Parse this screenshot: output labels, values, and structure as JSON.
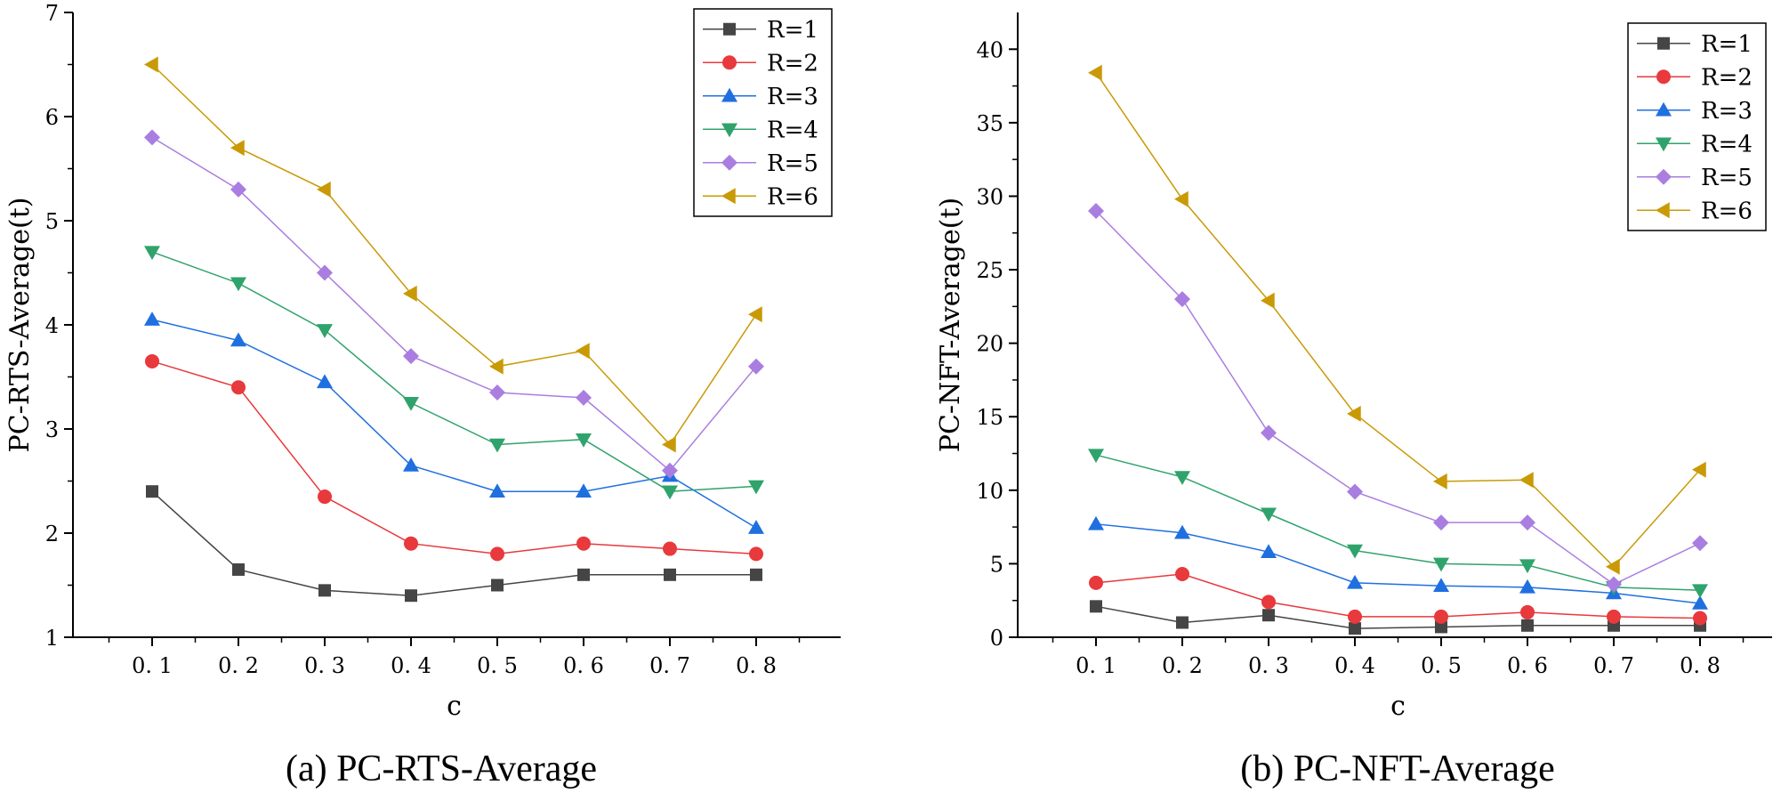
{
  "colors": {
    "R=1": "#454545",
    "R=2": "#e8393c",
    "R=3": "#1f6fe0",
    "R=4": "#2fa36b",
    "R=5": "#a97ee0",
    "R=6": "#c99a06"
  },
  "chart_data": [
    {
      "type": "line",
      "panel_caption": "(a) PC-RTS-Average",
      "xlabel": "c",
      "ylabel": "PC-RTS-Average(t)",
      "categories": [
        "0. 1",
        "0. 2",
        "0. 3",
        "0. 4",
        "0. 5",
        "0. 6",
        "0. 7",
        "0. 8"
      ],
      "ylim": [
        1,
        7
      ],
      "yticks": [
        1,
        2,
        3,
        4,
        5,
        6,
        7
      ],
      "legend_position": "top-right",
      "series": [
        {
          "name": "R=1",
          "marker": "square",
          "values": [
            2.4,
            1.65,
            1.45,
            1.4,
            1.5,
            1.6,
            1.6,
            1.6
          ]
        },
        {
          "name": "R=2",
          "marker": "circle",
          "values": [
            3.65,
            3.4,
            2.35,
            1.9,
            1.8,
            1.9,
            1.85,
            1.8
          ]
        },
        {
          "name": "R=3",
          "marker": "triangle-up",
          "values": [
            4.05,
            3.85,
            3.45,
            2.65,
            2.4,
            2.4,
            2.55,
            2.05
          ]
        },
        {
          "name": "R=4",
          "marker": "triangle-down",
          "values": [
            4.7,
            4.4,
            3.95,
            3.25,
            2.85,
            2.9,
            2.4,
            2.45
          ]
        },
        {
          "name": "R=5",
          "marker": "diamond",
          "values": [
            5.8,
            5.3,
            4.5,
            3.7,
            3.35,
            3.3,
            2.6,
            3.6
          ]
        },
        {
          "name": "R=6",
          "marker": "triangle-left",
          "values": [
            6.5,
            5.7,
            5.3,
            4.3,
            3.6,
            3.75,
            2.85,
            4.1
          ]
        }
      ]
    },
    {
      "type": "line",
      "panel_caption": "(b) PC-NFT-Average",
      "xlabel": "c",
      "ylabel": "PC-NFT-Average(t)",
      "categories": [
        "0. 1",
        "0. 2",
        "0. 3",
        "0. 4",
        "0. 5",
        "0. 6",
        "0. 7",
        "0. 8"
      ],
      "ylim": [
        0,
        42.5
      ],
      "yticks": [
        0,
        5,
        10,
        15,
        20,
        25,
        30,
        35,
        40
      ],
      "legend_position": "top-right",
      "series": [
        {
          "name": "R=1",
          "marker": "square",
          "values": [
            2.1,
            1.0,
            1.5,
            0.6,
            0.7,
            0.8,
            0.8,
            0.8
          ]
        },
        {
          "name": "R=2",
          "marker": "circle",
          "values": [
            3.7,
            4.3,
            2.4,
            1.4,
            1.4,
            1.7,
            1.4,
            1.3
          ]
        },
        {
          "name": "R=3",
          "marker": "triangle-up",
          "values": [
            7.7,
            7.1,
            5.8,
            3.7,
            3.5,
            3.4,
            3.0,
            2.3
          ]
        },
        {
          "name": "R=4",
          "marker": "triangle-down",
          "values": [
            12.4,
            10.9,
            8.4,
            5.9,
            5.0,
            4.9,
            3.4,
            3.2
          ]
        },
        {
          "name": "R=5",
          "marker": "diamond",
          "values": [
            29.0,
            23.0,
            13.9,
            9.9,
            7.8,
            7.8,
            3.6,
            6.4
          ]
        },
        {
          "name": "R=6",
          "marker": "triangle-left",
          "values": [
            38.4,
            29.8,
            22.9,
            15.2,
            10.6,
            10.7,
            4.8,
            11.4
          ]
        }
      ]
    }
  ]
}
